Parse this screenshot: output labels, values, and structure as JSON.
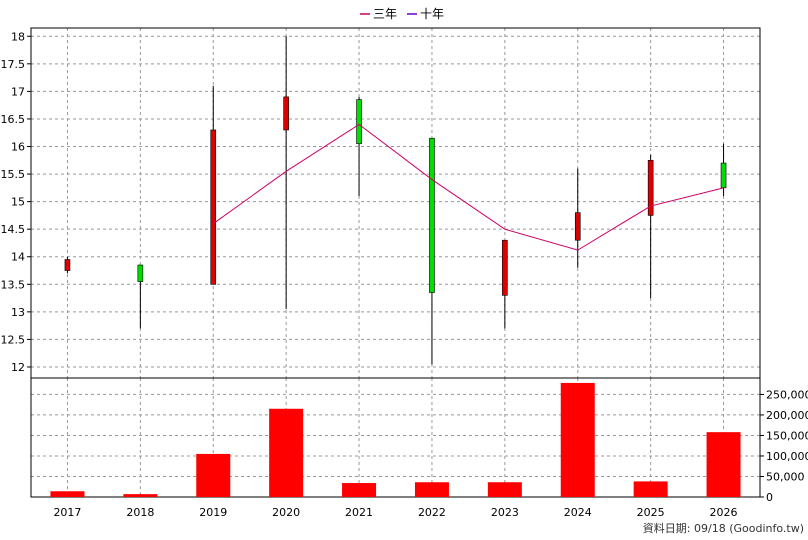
{
  "credit": "資料日期: 09/18  (Goodinfo.tw)",
  "legend": [
    {
      "label": "三年",
      "color": "#cc0066"
    },
    {
      "label": "十年",
      "color": "#6600cc"
    }
  ],
  "colors": {
    "up": "#00dd00",
    "down": "#dd0000",
    "volume": "#ff0000",
    "grid": "#999999"
  },
  "chart_data": {
    "type": "candlestick+bar",
    "grid": true,
    "legend_position": "top-center",
    "categories": [
      "2017",
      "2018",
      "2019",
      "2020",
      "2021",
      "2022",
      "2023",
      "2024",
      "2025",
      "2026"
    ],
    "price_axis": {
      "range": [
        11.8,
        18.15
      ],
      "ticks": [
        "12",
        "12.5",
        "13",
        "13.5",
        "14",
        "14.5",
        "15",
        "15.5",
        "16",
        "16.5",
        "17",
        "17.5",
        "18"
      ]
    },
    "volume_axis": {
      "range": [
        0,
        290000
      ],
      "ticks": [
        "0",
        "50,000",
        "100,000",
        "150,000",
        "200,000",
        "250,000"
      ]
    },
    "candles": [
      {
        "year": "2017",
        "open": 13.95,
        "close": 13.75,
        "high": 14.0,
        "low": 13.7
      },
      {
        "year": "2018",
        "open": 13.55,
        "close": 13.85,
        "high": 13.85,
        "low": 12.7
      },
      {
        "year": "2019",
        "open": 16.3,
        "close": 13.5,
        "high": 17.1,
        "low": 13.5
      },
      {
        "year": "2020",
        "open": 16.9,
        "close": 16.3,
        "high": 18.0,
        "low": 13.05
      },
      {
        "year": "2021",
        "open": 16.05,
        "close": 16.85,
        "high": 16.9,
        "low": 15.1
      },
      {
        "year": "2022",
        "open": 13.35,
        "close": 16.15,
        "high": 16.15,
        "low": 12.05
      },
      {
        "year": "2023",
        "open": 14.3,
        "close": 13.3,
        "high": 14.3,
        "low": 12.7
      },
      {
        "year": "2024",
        "open": 14.8,
        "close": 14.3,
        "high": 15.6,
        "low": 13.8
      },
      {
        "year": "2025",
        "open": 15.75,
        "close": 14.75,
        "high": 15.85,
        "low": 13.25
      },
      {
        "year": "2026",
        "open": 15.25,
        "close": 15.7,
        "high": 16.05,
        "low": 15.1
      }
    ],
    "series": [
      {
        "name": "三年",
        "values": [
          null,
          null,
          14.6,
          15.55,
          16.4,
          15.4,
          14.5,
          14.12,
          14.92,
          15.25
        ]
      },
      {
        "name": "十年",
        "values": [
          null,
          null,
          null,
          null,
          null,
          null,
          null,
          null,
          null,
          null
        ]
      }
    ],
    "volume": [
      14000,
      7000,
      105000,
      215000,
      34000,
      36000,
      36000,
      278000,
      38000,
      158000
    ]
  }
}
